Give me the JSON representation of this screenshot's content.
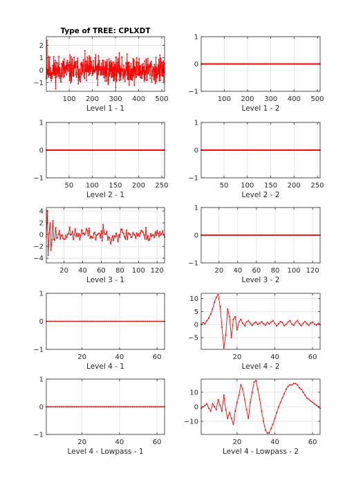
{
  "figure_title": "Type of TREE: CPLXDT",
  "line_color": "#ff0000",
  "grid_color": "#dfdfdf",
  "axis_color": "#262626",
  "chart_data": [
    {
      "id": "l1-1",
      "type": "line",
      "title": "Type of TREE: CPLXDT",
      "xlabel": "Level 1 - 1",
      "n": 512,
      "xlim": [
        1,
        512
      ],
      "ylim": [
        -1.7,
        2.7
      ],
      "xticks": [
        100,
        200,
        300,
        400,
        500
      ],
      "yticks": [
        -1,
        0,
        1,
        2
      ],
      "signal": "noise",
      "amp": 0.55,
      "burst": 0,
      "seed": 11
    },
    {
      "id": "l1-2",
      "type": "line",
      "xlabel": "Level 1 - 2",
      "n": 512,
      "xlim": [
        1,
        512
      ],
      "ylim": [
        -1,
        1
      ],
      "xticks": [
        100,
        200,
        300,
        400,
        500
      ],
      "yticks": [
        -1,
        0,
        1
      ],
      "signal": "zero"
    },
    {
      "id": "l2-1",
      "type": "line",
      "xlabel": "Level 2 - 1",
      "n": 256,
      "xlim": [
        1,
        256
      ],
      "ylim": [
        -1,
        1
      ],
      "xticks": [
        50,
        100,
        150,
        200,
        250
      ],
      "yticks": [
        -1,
        0,
        1
      ],
      "signal": "zero"
    },
    {
      "id": "l2-2",
      "type": "line",
      "xlabel": "Level 2 - 2",
      "n": 256,
      "xlim": [
        1,
        256
      ],
      "ylim": [
        -1,
        1
      ],
      "xticks": [
        50,
        100,
        150,
        200,
        250
      ],
      "yticks": [
        -1,
        0,
        1
      ],
      "signal": "zero"
    },
    {
      "id": "l3-1",
      "type": "line",
      "xlabel": "Level 3 - 1",
      "n": 128,
      "xlim": [
        1,
        128
      ],
      "ylim": [
        -4.8,
        4.6
      ],
      "xticks": [
        20,
        40,
        60,
        80,
        100,
        120
      ],
      "yticks": [
        -4,
        -2,
        0,
        2,
        4
      ],
      "signal": "noise",
      "amp": 0.6,
      "burst": 4.3,
      "burstEnd": 12,
      "seed": 23
    },
    {
      "id": "l3-2",
      "type": "line",
      "xlabel": "Level 3 - 2",
      "n": 128,
      "xlim": [
        1,
        128
      ],
      "ylim": [
        -1,
        1
      ],
      "xticks": [
        20,
        40,
        60,
        80,
        100,
        120
      ],
      "yticks": [
        -1,
        0,
        1
      ],
      "signal": "zero"
    },
    {
      "id": "l4-1",
      "type": "line",
      "xlabel": "Level 4 - 1",
      "n": 64,
      "xlim": [
        1,
        64
      ],
      "ylim": [
        -1,
        1
      ],
      "xticks": [
        20,
        40,
        60
      ],
      "yticks": [
        -1,
        0,
        1
      ],
      "signal": "zero"
    },
    {
      "id": "l4-2",
      "type": "line",
      "xlabel": "Level 4 - 2",
      "n": 64,
      "xlim": [
        1,
        64
      ],
      "ylim": [
        -9.5,
        12
      ],
      "xticks": [
        20,
        40,
        60
      ],
      "yticks": [
        -5,
        0,
        5,
        10
      ],
      "signal": "custom",
      "values": [
        0,
        0.8,
        0.3,
        1.5,
        2.5,
        4,
        6,
        8.5,
        10.5,
        11.5,
        7,
        -1,
        -9,
        -4,
        6,
        3,
        -5,
        2,
        3,
        -2,
        1,
        2,
        0.5,
        -0.5,
        1,
        1.5,
        0.5,
        -0.3,
        0.5,
        1,
        0,
        0.5,
        1.2,
        0.3,
        -0.2,
        0.8,
        0.2,
        1,
        1.5,
        0.5,
        -0.5,
        0.3,
        1.2,
        0.8,
        -0.5,
        0.2,
        1,
        1.5,
        0.2,
        -0.3,
        0.8,
        1.5,
        0.3,
        -0.5,
        0.5,
        1.2,
        0.4,
        -0.3,
        0.6,
        1,
        0.2,
        -0.2,
        0.5,
        0
      ]
    },
    {
      "id": "l4l-1",
      "type": "line",
      "xlabel": "Level 4 - Lowpass - 1",
      "n": 64,
      "xlim": [
        1,
        64
      ],
      "ylim": [
        -1,
        1
      ],
      "xticks": [
        20,
        40,
        60
      ],
      "yticks": [
        -1,
        0,
        1
      ],
      "signal": "zero"
    },
    {
      "id": "l4l-2",
      "type": "line",
      "xlabel": "Level 4 - Lowpass - 2",
      "n": 64,
      "xlim": [
        1,
        64
      ],
      "ylim": [
        -19,
        19
      ],
      "xticks": [
        20,
        40,
        60
      ],
      "yticks": [
        -10,
        0,
        10
      ],
      "signal": "custom",
      "values": [
        -1,
        0,
        1,
        2,
        -1,
        -3,
        2,
        0,
        -2,
        5,
        1,
        -3,
        8,
        -2,
        -8,
        -4,
        -8,
        -12,
        -3,
        3,
        8,
        15,
        12,
        5,
        -2,
        -8,
        3,
        10,
        17,
        18,
        12,
        5,
        -3,
        -10,
        -16,
        -18,
        -18,
        -15,
        -12,
        -8,
        -4,
        0,
        3,
        6,
        9,
        12,
        14,
        15,
        15,
        16,
        16,
        15,
        13,
        12,
        10,
        8,
        6,
        5,
        4,
        3,
        2,
        1,
        0,
        -1
      ]
    }
  ]
}
